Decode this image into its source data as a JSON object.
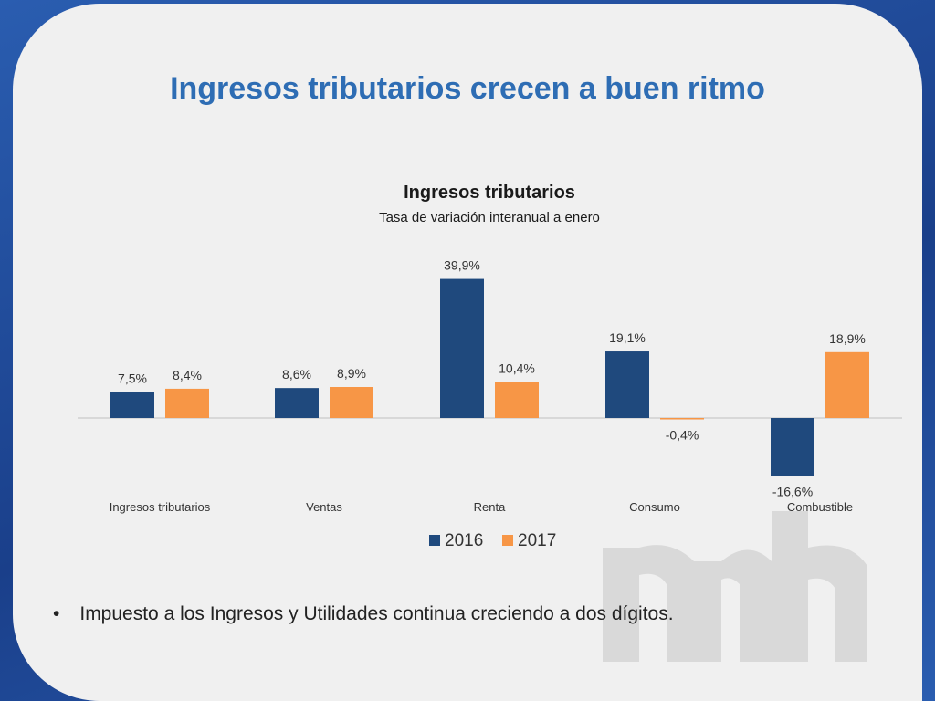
{
  "slide": {
    "title": "Ingresos tributarios crecen a buen ritmo",
    "bullet_symbol": "•",
    "bullet_text": "Impuesto a los Ingresos y Utilidades continua creciendo a dos dígitos.",
    "colors": {
      "frame": "#1a3f8a",
      "title": "#2e6db4",
      "background": "#f0f0f0"
    },
    "watermark_icon": "mh-logo-watermark"
  },
  "chart_data": {
    "type": "bar",
    "title": "Ingresos tributarios",
    "subtitle": "Tasa de variación interanual a enero",
    "categories": [
      "Ingresos tributarios",
      "Ventas",
      "Renta",
      "Consumo",
      "Combustible"
    ],
    "series": [
      {
        "name": "2016",
        "color": "#1f497d",
        "values": [
          7.5,
          8.6,
          39.9,
          19.1,
          -16.6
        ],
        "labels": [
          "7,5%",
          "8,6%",
          "39,9%",
          "19,1%",
          "-16,6%"
        ]
      },
      {
        "name": "2017",
        "color": "#f79646",
        "values": [
          8.4,
          8.9,
          10.4,
          -0.4,
          18.9
        ],
        "labels": [
          "8,4%",
          "8,9%",
          "10,4%",
          "-0,4%",
          "18,9%"
        ]
      }
    ],
    "legend_position": "bottom",
    "grid": false
  }
}
